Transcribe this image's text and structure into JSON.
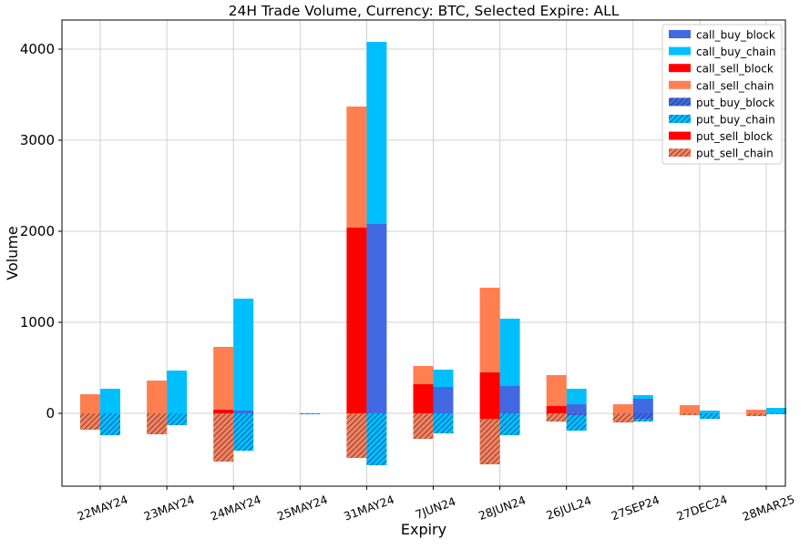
{
  "chart_data": {
    "type": "bar",
    "stacked": true,
    "title": "24H Trade Volume, Currency: BTC, Selected Expire: ALL",
    "xlabel": "Expiry",
    "ylabel": "Volume",
    "ylim": [
      -800,
      4320
    ],
    "yticks": [
      0,
      1000,
      2000,
      3000,
      4000
    ],
    "grid": true,
    "legend_position": "top-right",
    "categories": [
      "22MAY24",
      "23MAY24",
      "24MAY24",
      "25MAY24",
      "31MAY24",
      "7JUN24",
      "28JUN24",
      "26JUL24",
      "27SEP24",
      "27DEC24",
      "28MAR25"
    ],
    "series": [
      {
        "name": "call_buy_block",
        "color": "#4169e1",
        "hatch": false,
        "side": "buy",
        "values": [
          0,
          0,
          30,
          0,
          2080,
          290,
          300,
          100,
          160,
          0,
          0
        ]
      },
      {
        "name": "call_buy_chain",
        "color": "#00bfff",
        "hatch": false,
        "side": "buy",
        "values": [
          270,
          470,
          1230,
          0,
          2000,
          190,
          740,
          170,
          40,
          30,
          60
        ]
      },
      {
        "name": "call_sell_block",
        "color": "#ff0000",
        "hatch": false,
        "side": "sell",
        "values": [
          0,
          0,
          40,
          0,
          2040,
          320,
          450,
          80,
          0,
          0,
          0
        ]
      },
      {
        "name": "call_sell_chain",
        "color": "#ff7f50",
        "hatch": false,
        "side": "sell",
        "values": [
          210,
          360,
          690,
          0,
          1330,
          200,
          930,
          340,
          100,
          90,
          40
        ]
      },
      {
        "name": "put_buy_block",
        "color": "#4169e1",
        "hatch": true,
        "side": "buy",
        "values": [
          0,
          0,
          0,
          0,
          0,
          0,
          0,
          -20,
          -60,
          0,
          0
        ]
      },
      {
        "name": "put_buy_chain",
        "color": "#00bfff",
        "hatch": true,
        "side": "buy",
        "values": [
          -240,
          -130,
          -410,
          -10,
          -570,
          -220,
          -240,
          -170,
          -30,
          -60,
          -10
        ]
      },
      {
        "name": "put_sell_block",
        "color": "#ff0000",
        "hatch": false,
        "side": "sell",
        "values": [
          0,
          0,
          0,
          0,
          0,
          0,
          -60,
          0,
          0,
          0,
          0
        ]
      },
      {
        "name": "put_sell_chain",
        "color": "#ff7f50",
        "hatch": true,
        "side": "sell",
        "values": [
          -180,
          -230,
          -530,
          0,
          -490,
          -280,
          -500,
          -90,
          -100,
          -20,
          -30
        ]
      }
    ]
  }
}
